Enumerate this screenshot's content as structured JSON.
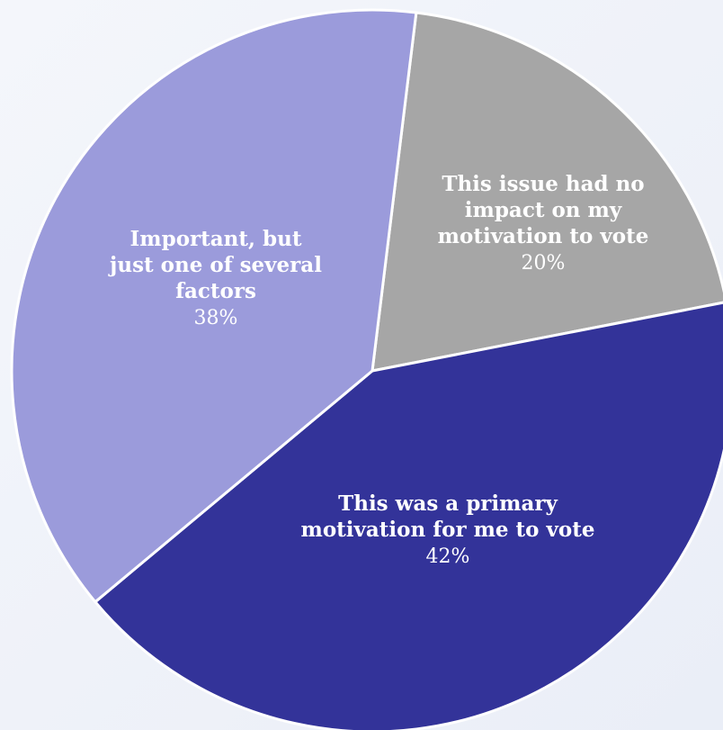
{
  "chart_data": {
    "type": "pie",
    "slices": [
      {
        "lines": [
          "This issue had no",
          "impact on my",
          "motivation to vote"
        ],
        "value_label": "20%",
        "value": 20,
        "color": "#a6a6a6"
      },
      {
        "lines": [
          "This was a primary",
          "motivation for me to vote"
        ],
        "value_label": "42%",
        "value": 42,
        "color": "#333399"
      },
      {
        "lines": [
          "Important, but",
          "just one of several",
          "factors"
        ],
        "value_label": "38%",
        "value": 38,
        "color": "#9b9bdb"
      }
    ],
    "start_angle_deg": 7,
    "direction": "clockwise",
    "legend": "none",
    "label_color": "#ffffff"
  }
}
